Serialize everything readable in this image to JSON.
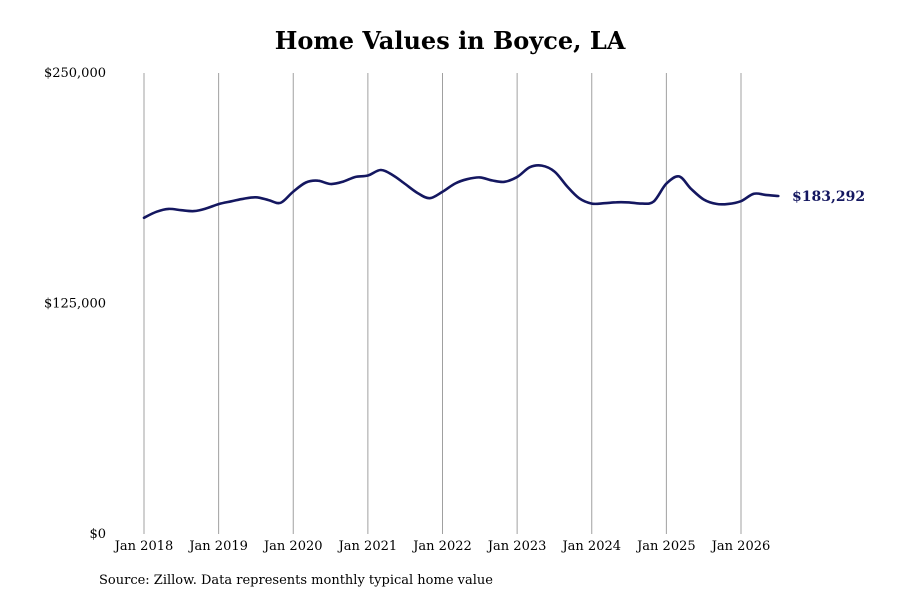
{
  "chart_data": {
    "type": "line",
    "title": "Home Values in Boyce, LA",
    "xlabel": "",
    "ylabel": "",
    "ylim": [
      0,
      250000
    ],
    "y_ticks": [
      {
        "value": 0,
        "label": "$0"
      },
      {
        "value": 125000,
        "label": "$125,000"
      },
      {
        "value": 250000,
        "label": "$250,000"
      }
    ],
    "x_ticks": [
      {
        "value": 2018.0,
        "label": "Jan 2018"
      },
      {
        "value": 2019.0,
        "label": "Jan 2019"
      },
      {
        "value": 2020.0,
        "label": "Jan 2020"
      },
      {
        "value": 2021.0,
        "label": "Jan 2021"
      },
      {
        "value": 2022.0,
        "label": "Jan 2022"
      },
      {
        "value": 2023.0,
        "label": "Jan 2023"
      },
      {
        "value": 2024.0,
        "label": "Jan 2024"
      },
      {
        "value": 2025.0,
        "label": "Jan 2025"
      },
      {
        "value": 2026.0,
        "label": "Jan 2026"
      }
    ],
    "xlim": [
      2018.0,
      2026.5
    ],
    "grid": "vertical",
    "line_color": "#141760",
    "series": [
      {
        "x": [
          2018.0,
          2018.17,
          2018.33,
          2018.5,
          2018.67,
          2018.83,
          2019.0,
          2019.17,
          2019.33,
          2019.5,
          2019.67,
          2019.83,
          2020.0,
          2020.17,
          2020.33,
          2020.5,
          2020.67,
          2020.83,
          2021.0,
          2021.17,
          2021.33,
          2021.5,
          2021.67,
          2021.83,
          2022.0,
          2022.17,
          2022.33,
          2022.5,
          2022.67,
          2022.83,
          2023.0,
          2023.17,
          2023.33,
          2023.5,
          2023.67,
          2023.83,
          2024.0,
          2024.17,
          2024.33,
          2024.5,
          2024.67,
          2024.83,
          2025.0,
          2025.17,
          2025.33,
          2025.5,
          2025.67,
          2025.83,
          2026.0,
          2026.17,
          2026.33,
          2026.5
        ],
        "y": [
          171500,
          174800,
          176300,
          175600,
          175100,
          176500,
          178900,
          180400,
          181800,
          182600,
          181100,
          179600,
          185700,
          190600,
          191600,
          189800,
          191100,
          193600,
          194400,
          197400,
          194700,
          189800,
          184800,
          182100,
          185600,
          190100,
          192400,
          193400,
          191700,
          191000,
          193600,
          198900,
          199800,
          196600,
          188500,
          182100,
          179200,
          179400,
          179900,
          179800,
          179200,
          180300,
          190000,
          193900,
          187200,
          181400,
          179000,
          179000,
          180500,
          184500,
          183900,
          183292
        ]
      }
    ],
    "end_label": "$183,292"
  },
  "footer": {
    "source": "Source: Zillow. Data represents monthly typical home value"
  }
}
